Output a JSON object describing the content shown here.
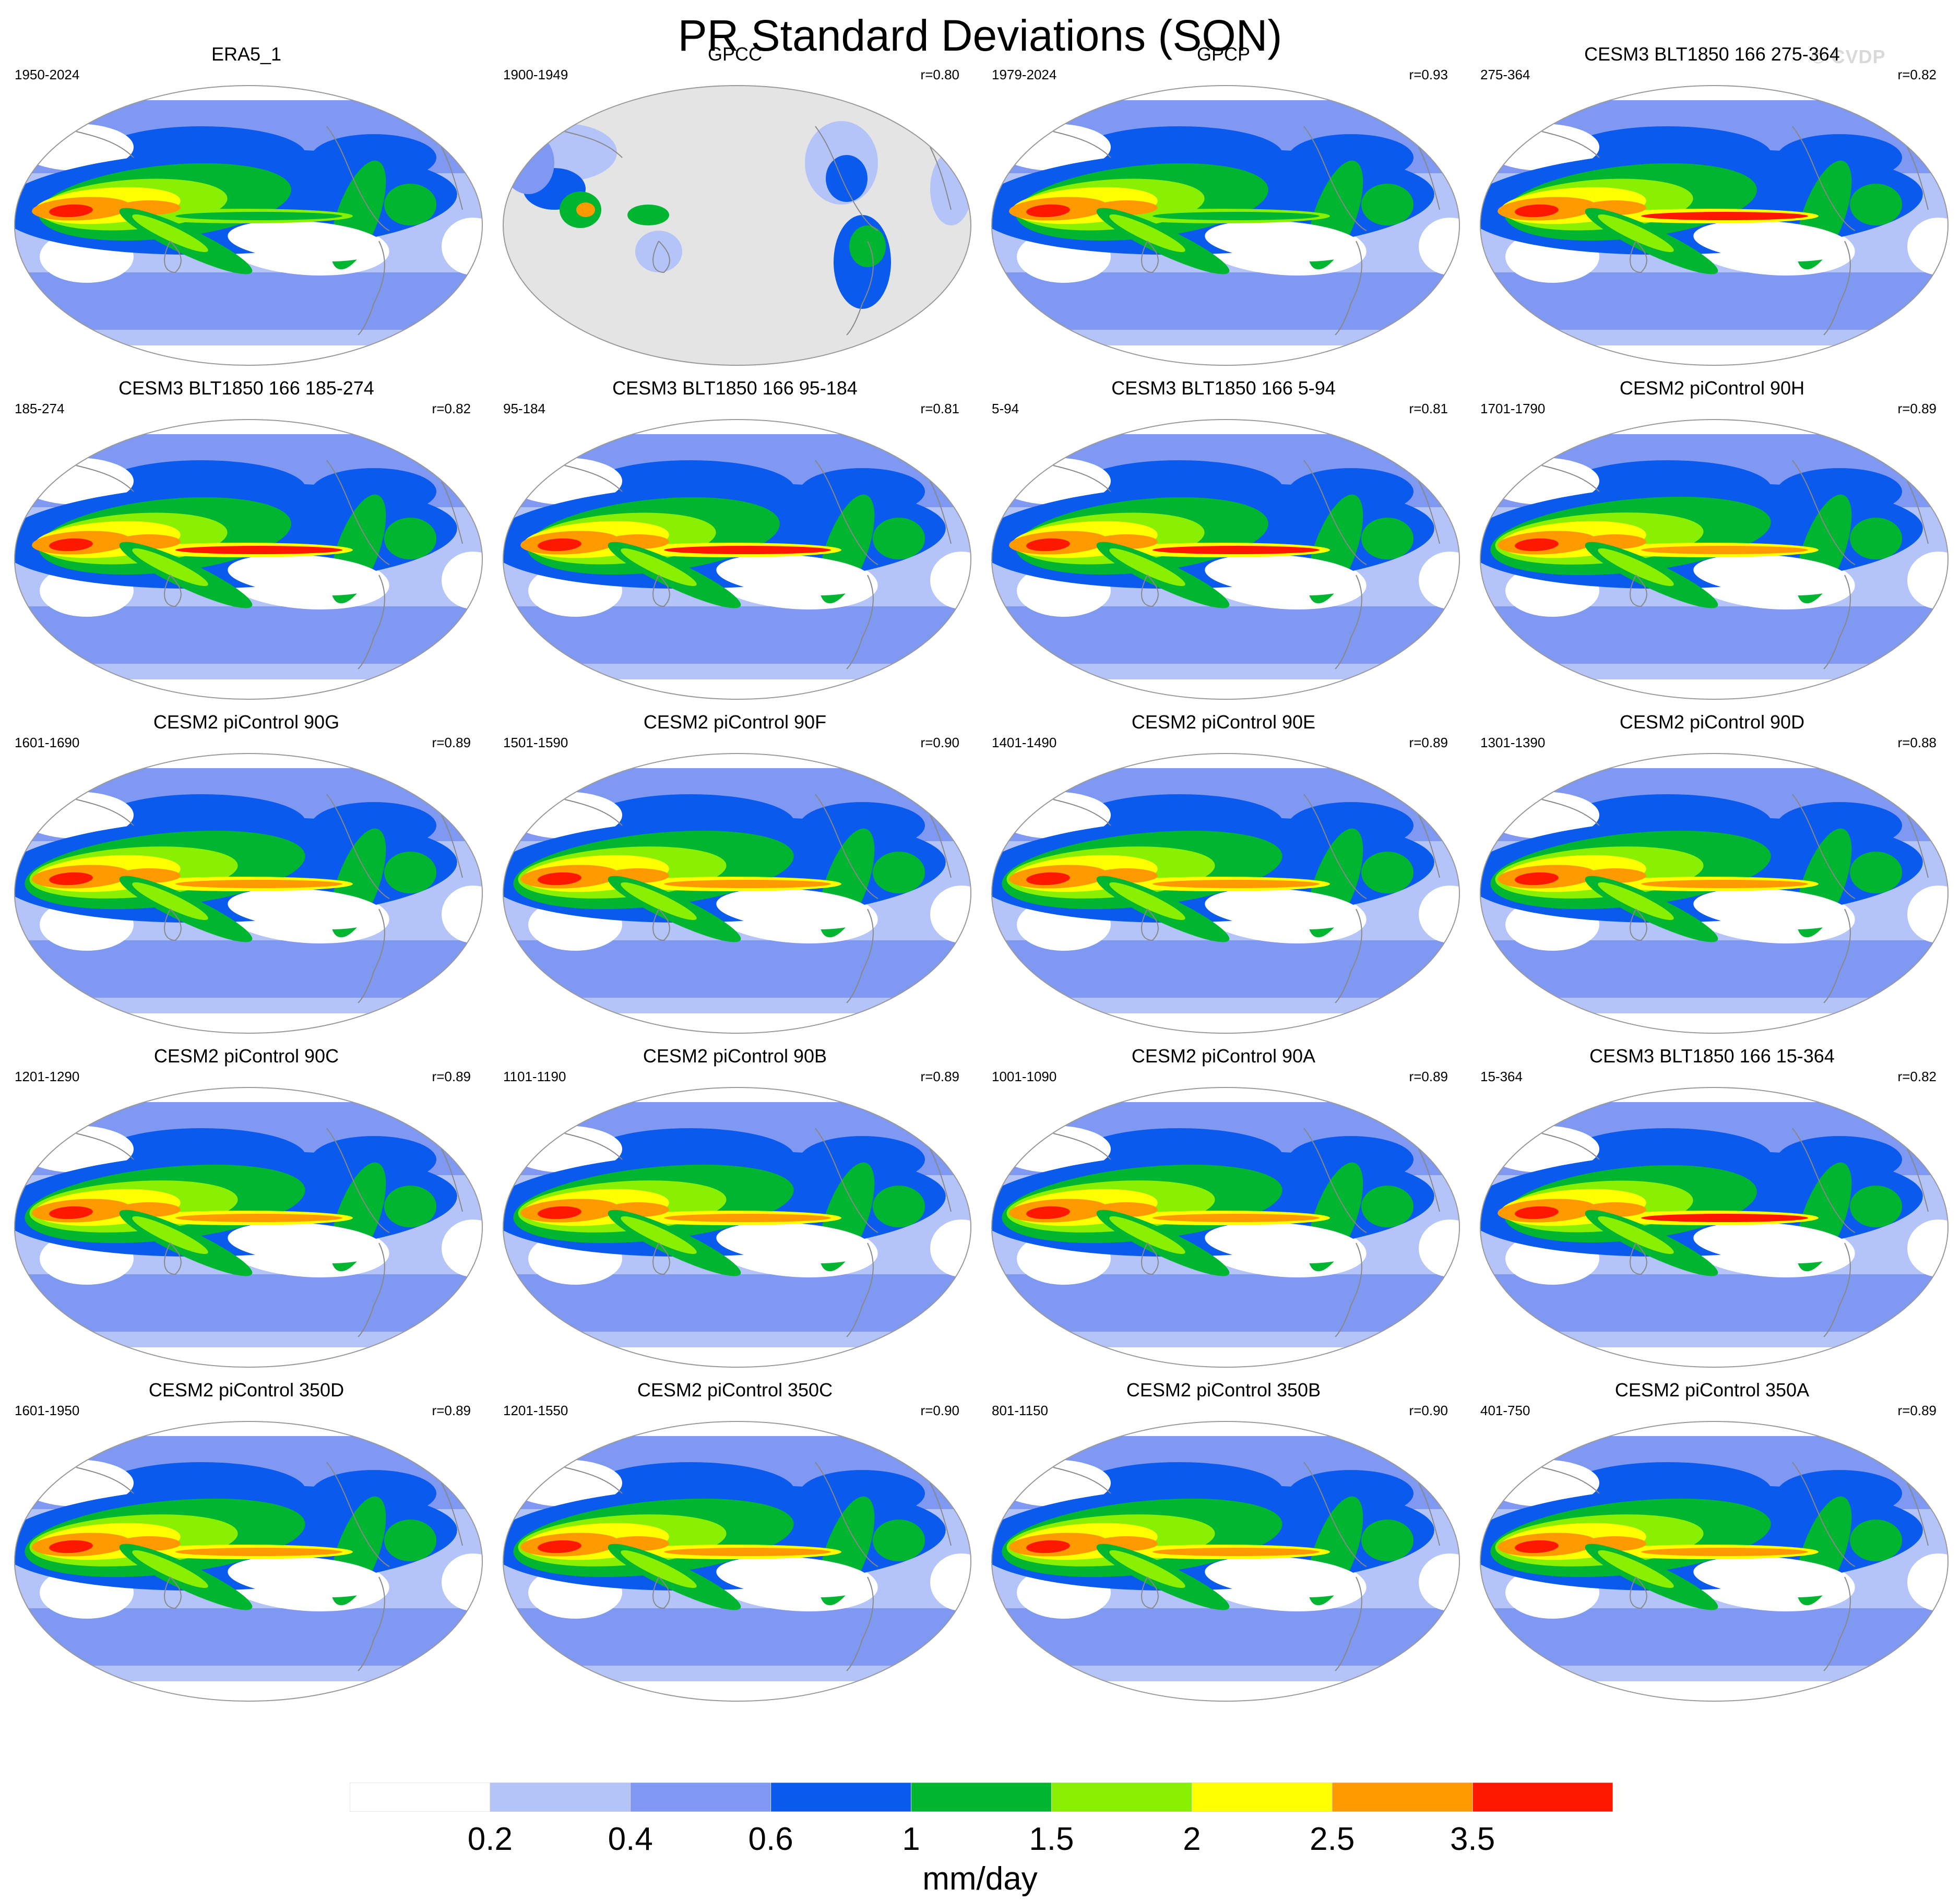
{
  "title": "PR Standard Deviations (SON)",
  "watermark": "© CVDP",
  "colors": {
    "levels": [
      "#ffffff",
      "#b4c4f8",
      "#7f98f2",
      "#0a5aed",
      "#00b630",
      "#88f000",
      "#ffff00",
      "#ff9900",
      "#ff1800"
    ],
    "land_mask": "#e4e4e4",
    "coast": "#888888"
  },
  "colorbar": {
    "tick_labels": [
      "0.2",
      "0.4",
      "0.6",
      "1",
      "1.5",
      "2",
      "2.5",
      "3.5"
    ],
    "units": "mm/day"
  },
  "panels": [
    {
      "name": "ERA5_1",
      "period": "1950-2024",
      "corr": "",
      "style": "obs"
    },
    {
      "name": "GPCC",
      "period": "1900-1949",
      "corr": "r=0.80",
      "style": "gpcc"
    },
    {
      "name": "GPCP",
      "period": "1979-2024",
      "corr": "r=0.93",
      "style": "obs"
    },
    {
      "name": "CESM3 BLT1850 166 275-364",
      "period": "275-364",
      "corr": "r=0.82",
      "style": "cesm3"
    },
    {
      "name": "CESM3 BLT1850 166 185-274",
      "period": "185-274",
      "corr": "r=0.82",
      "style": "cesm3"
    },
    {
      "name": "CESM3 BLT1850 166 95-184",
      "period": "95-184",
      "corr": "r=0.81",
      "style": "cesm3"
    },
    {
      "name": "CESM3 BLT1850 166 5-94",
      "period": "5-94",
      "corr": "r=0.81",
      "style": "cesm3"
    },
    {
      "name": "CESM2 piControl 90H",
      "period": "1701-1790",
      "corr": "r=0.89",
      "style": "cesm2"
    },
    {
      "name": "CESM2 piControl 90G",
      "period": "1601-1690",
      "corr": "r=0.89",
      "style": "cesm2"
    },
    {
      "name": "CESM2 piControl 90F",
      "period": "1501-1590",
      "corr": "r=0.90",
      "style": "cesm2"
    },
    {
      "name": "CESM2 piControl 90E",
      "period": "1401-1490",
      "corr": "r=0.89",
      "style": "cesm2"
    },
    {
      "name": "CESM2 piControl 90D",
      "period": "1301-1390",
      "corr": "r=0.88",
      "style": "cesm2"
    },
    {
      "name": "CESM2 piControl 90C",
      "period": "1201-1290",
      "corr": "r=0.89",
      "style": "cesm2"
    },
    {
      "name": "CESM2 piControl 90B",
      "period": "1101-1190",
      "corr": "r=0.89",
      "style": "cesm2"
    },
    {
      "name": "CESM2 piControl 90A",
      "period": "1001-1090",
      "corr": "r=0.89",
      "style": "cesm2"
    },
    {
      "name": "CESM3 BLT1850 166 15-364",
      "period": "15-364",
      "corr": "r=0.82",
      "style": "cesm3"
    },
    {
      "name": "CESM2 piControl 350D",
      "period": "1601-1950",
      "corr": "r=0.89",
      "style": "cesm2"
    },
    {
      "name": "CESM2 piControl 350C",
      "period": "1201-1550",
      "corr": "r=0.90",
      "style": "cesm2"
    },
    {
      "name": "CESM2 piControl 350B",
      "period": "801-1150",
      "corr": "r=0.90",
      "style": "cesm2"
    },
    {
      "name": "CESM2 piControl 350A",
      "period": "401-750",
      "corr": "r=0.89",
      "style": "cesm2"
    }
  ]
}
